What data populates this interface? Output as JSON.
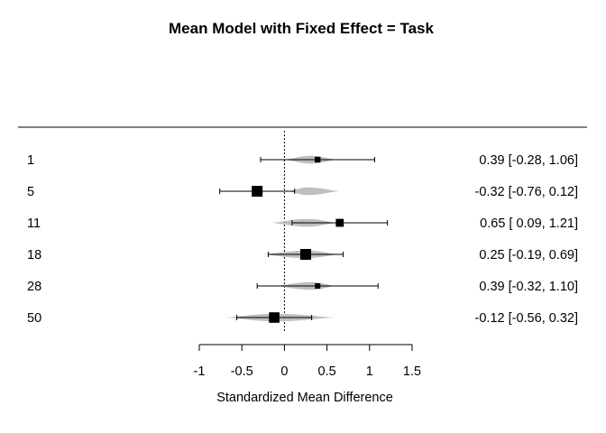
{
  "chart_data": {
    "type": "forest",
    "title": "Mean Model with Fixed Effect = Task",
    "xlabel": "Standardized Mean Difference",
    "xlim": [
      -1,
      1.5
    ],
    "xticks": [
      -1,
      -0.5,
      0,
      0.5,
      1,
      1.5
    ],
    "xtick_labels": [
      "-1",
      "-0.5",
      "0",
      "0.5",
      "1",
      "1.5"
    ],
    "reference_line": 0,
    "studies": [
      {
        "label": "1",
        "estimate": 0.39,
        "lower": -0.28,
        "upper": 1.06,
        "text": "0.39 [-0.28, 1.06]",
        "weight": 0.3,
        "posterior": {
          "low": 0.0,
          "high": 0.62,
          "peak": 0.3
        }
      },
      {
        "label": "5",
        "estimate": -0.32,
        "lower": -0.76,
        "upper": 0.12,
        "text": "-0.32 [-0.76, 0.12]",
        "weight": 1.0,
        "posterior": {
          "low": 0.05,
          "high": 0.65,
          "peak": 0.27
        }
      },
      {
        "label": "11",
        "estimate": 0.65,
        "lower": 0.09,
        "upper": 1.21,
        "text": "0.65 [ 0.09, 1.21]",
        "weight": 0.6,
        "posterior": {
          "low": -0.15,
          "high": 0.62,
          "peak": 0.27
        }
      },
      {
        "label": "18",
        "estimate": 0.25,
        "lower": -0.19,
        "upper": 0.69,
        "text": "0.25 [-0.19, 0.69]",
        "weight": 1.0,
        "posterior": {
          "low": -0.25,
          "high": 0.65,
          "peak": 0.25
        }
      },
      {
        "label": "28",
        "estimate": 0.39,
        "lower": -0.32,
        "upper": 1.1,
        "text": "0.39 [-0.32, 1.10]",
        "weight": 0.25,
        "posterior": {
          "low": -0.12,
          "high": 0.6,
          "peak": 0.32
        }
      },
      {
        "label": "50",
        "estimate": -0.12,
        "lower": -0.56,
        "upper": 0.32,
        "text": "-0.12 [-0.56, 0.32]",
        "weight": 0.95,
        "posterior": {
          "low": -0.7,
          "high": 0.6,
          "peak": -0.1
        }
      }
    ],
    "colors": {
      "posterior": "#bebebe",
      "ink": "#000000"
    }
  }
}
